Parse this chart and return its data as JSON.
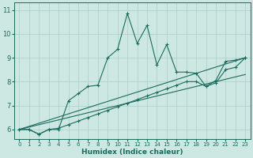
{
  "xlabel": "Humidex (Indice chaleur)",
  "xlim": [
    -0.5,
    23.5
  ],
  "ylim": [
    5.6,
    11.3
  ],
  "xticks": [
    0,
    1,
    2,
    3,
    4,
    5,
    6,
    7,
    8,
    9,
    10,
    11,
    12,
    13,
    14,
    15,
    16,
    17,
    18,
    19,
    20,
    21,
    22,
    23
  ],
  "yticks": [
    6,
    7,
    8,
    9,
    10,
    11
  ],
  "bg_color": "#cde8e2",
  "grid_color": "#aacfc8",
  "line_color": "#1a6b5e",
  "series1_x": [
    0,
    1,
    2,
    3,
    4,
    5,
    6,
    7,
    8,
    9,
    10,
    11,
    12,
    13,
    14,
    15,
    16,
    17,
    18,
    19,
    20,
    21,
    22,
    23
  ],
  "series1_y": [
    6.0,
    6.0,
    5.8,
    6.0,
    6.0,
    7.2,
    7.5,
    7.8,
    7.85,
    9.0,
    9.35,
    10.85,
    9.6,
    10.35,
    8.7,
    9.55,
    8.4,
    8.4,
    8.35,
    7.8,
    8.05,
    8.85,
    8.9,
    9.0
  ],
  "series2_x": [
    0,
    1,
    2,
    3,
    4,
    5,
    6,
    7,
    8,
    9,
    10,
    11,
    12,
    13,
    14,
    15,
    16,
    17,
    18,
    19,
    20,
    21,
    22,
    23
  ],
  "series2_y": [
    6.0,
    6.0,
    5.8,
    6.0,
    6.05,
    6.2,
    6.35,
    6.5,
    6.65,
    6.8,
    6.95,
    7.1,
    7.25,
    7.4,
    7.55,
    7.7,
    7.85,
    8.0,
    8.0,
    7.8,
    7.95,
    8.5,
    8.6,
    9.0
  ],
  "series3_x": [
    0,
    23
  ],
  "series3_y": [
    6.0,
    9.0
  ],
  "series4_x": [
    0,
    23
  ],
  "series4_y": [
    6.0,
    8.3
  ]
}
